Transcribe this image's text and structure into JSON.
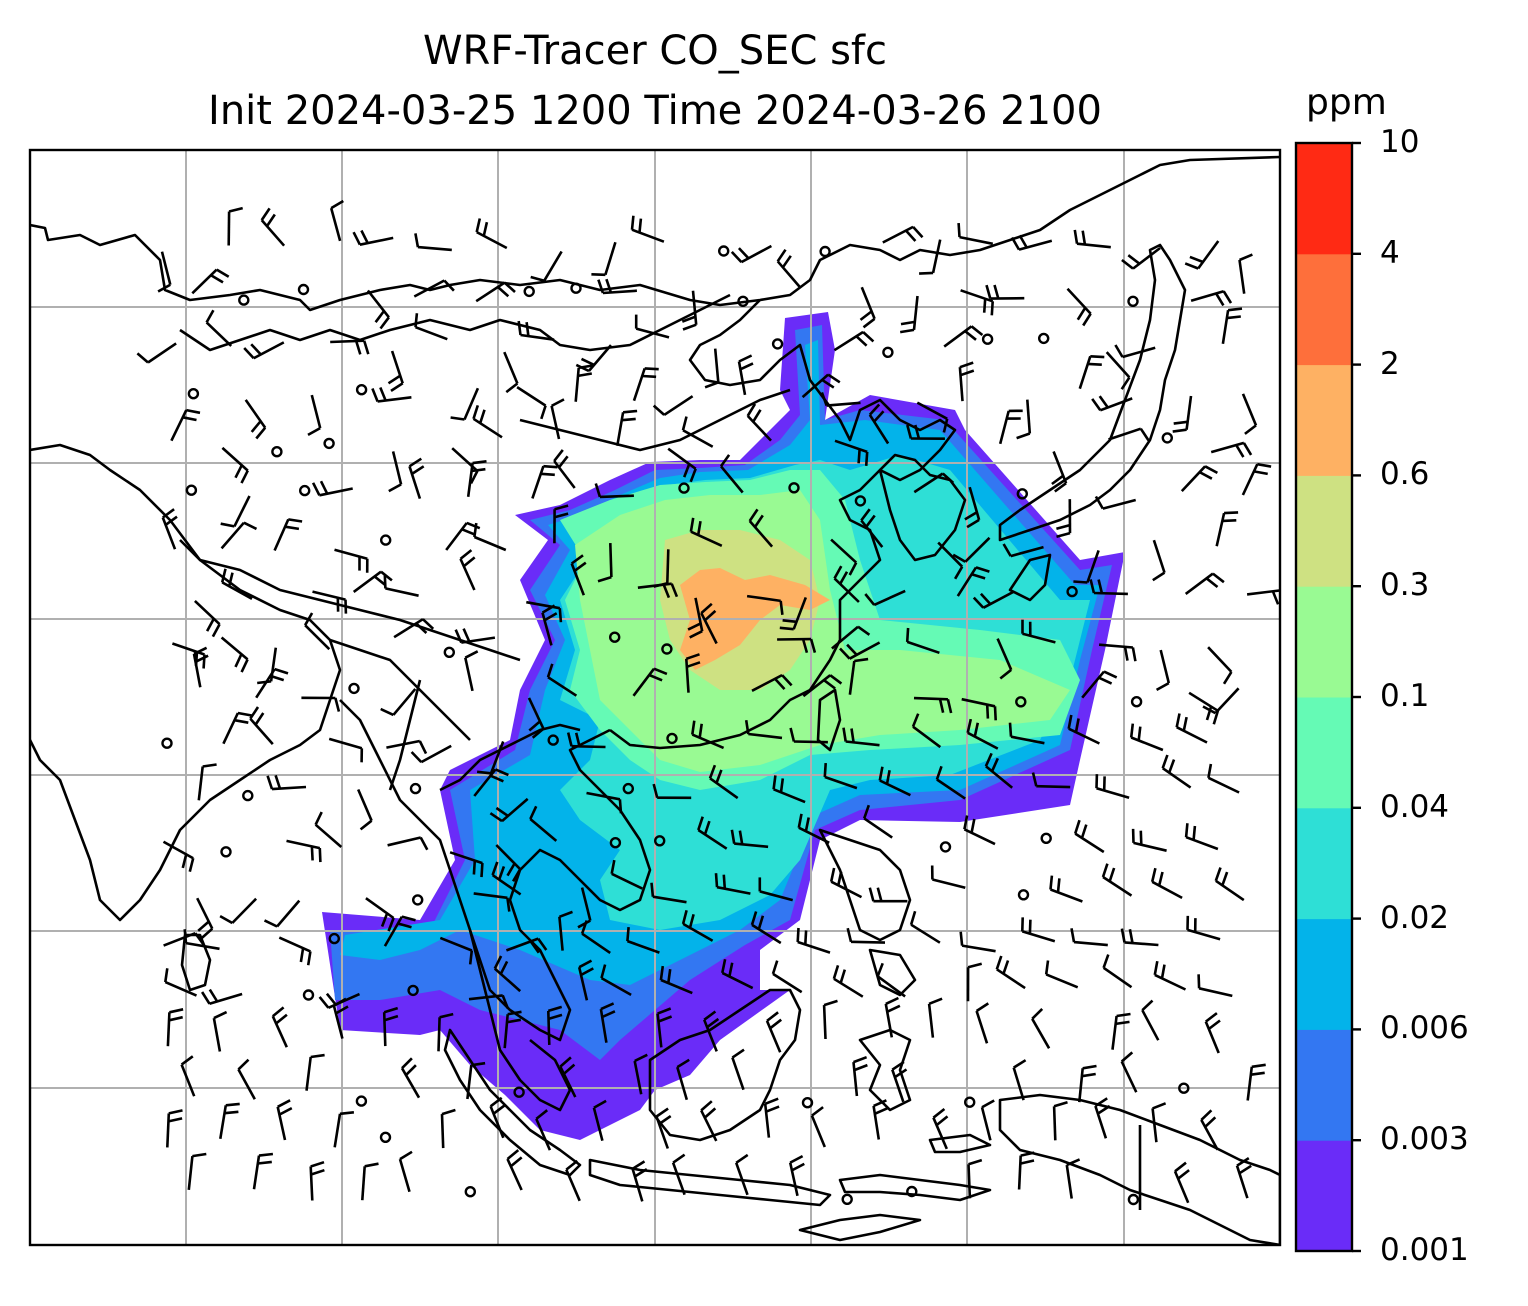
{
  "title": {
    "line1": "WRF-Tracer CO_SEC sfc",
    "line2": "Init 2024-03-25 1200 Time 2024-03-26 2100"
  },
  "colorbar": {
    "unit": "ppm",
    "levels": [
      "0.001",
      "0.003",
      "0.006",
      "0.02",
      "0.04",
      "0.1",
      "0.3",
      "0.6",
      "2",
      "4",
      "10"
    ],
    "colors": [
      "#6a2cf8",
      "#3377f2",
      "#03b3ea",
      "#2edfd6",
      "#65fab5",
      "#99fa93",
      "#cee182",
      "#feb163",
      "#fe6f3b",
      "#ff2a14"
    ]
  },
  "map": {
    "background": "#ffffff",
    "gridline_color": "#b0b0b0",
    "coastline_color": "#000000",
    "wind_barb_color": "#000000"
  }
}
